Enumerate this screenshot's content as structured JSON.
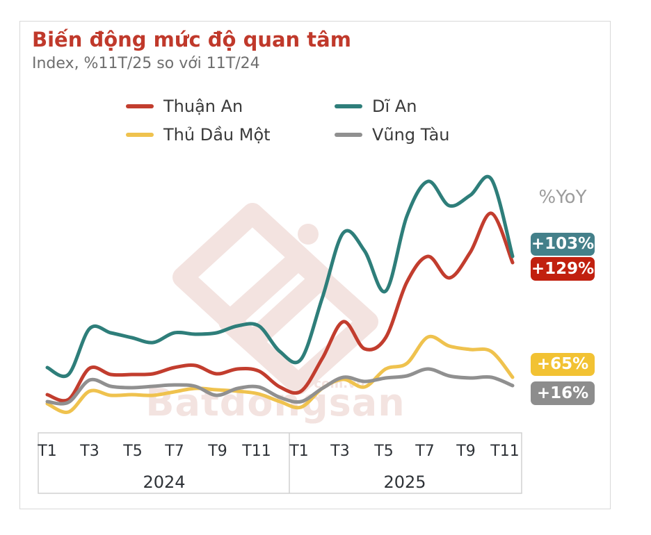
{
  "card": {
    "title": "Biến động mức độ quan tâm",
    "subtitle": "Index, %11T/25 so với 11T/24"
  },
  "legend": [
    {
      "label": "Thuận An",
      "color": "#c23d2e"
    },
    {
      "label": "Dĩ An",
      "color": "#2e7e7a"
    },
    {
      "label": "Thủ Dầu Một",
      "color": "#efc24e"
    },
    {
      "label": "Vũng Tàu",
      "color": "#909090"
    }
  ],
  "yoy": {
    "header": "%YoY",
    "badges": [
      {
        "label": "+103%",
        "series": "Dĩ An",
        "color": "#44808a"
      },
      {
        "label": "+129%",
        "series": "Thuận An",
        "color": "#c1200f"
      },
      {
        "label": "+65%",
        "series": "Thủ Dầu Một",
        "color": "#f2c233"
      },
      {
        "label": "+16%",
        "series": "Vũng Tàu",
        "color": "#8d8d8d"
      }
    ]
  },
  "axis": {
    "groups": [
      {
        "year": "2024",
        "ticks": [
          "T1",
          "T3",
          "T5",
          "T7",
          "T9",
          "T11"
        ]
      },
      {
        "year": "2025",
        "ticks": [
          "T1",
          "T3",
          "T5",
          "T7",
          "T9",
          "T11"
        ]
      }
    ]
  },
  "watermark": {
    "brand": "Batdongsan",
    "domain": "com.vn"
  },
  "chart_data": {
    "type": "line",
    "title": "Biến động mức độ quan tâm",
    "subtitle": "Index, %11T/25 so với 11T/24",
    "x": [
      "T1/24",
      "T2/24",
      "T3/24",
      "T4/24",
      "T5/24",
      "T6/24",
      "T7/24",
      "T8/24",
      "T9/24",
      "T10/24",
      "T11/24",
      "T12/24",
      "T1/25",
      "T2/25",
      "T3/25",
      "T4/25",
      "T5/25",
      "T6/25",
      "T7/25",
      "T8/25",
      "T9/25",
      "T10/25",
      "T11/25"
    ],
    "x_axis_note": "monthly index, T1 2024 through T11 2025; only odd months labeled",
    "ylim": [
      0,
      390
    ],
    "y_axis_shown": false,
    "grid": false,
    "legend_position": "top",
    "series": [
      {
        "name": "Thuận An",
        "color": "#c23d2e",
        "yoy": "+129%",
        "values": [
          63,
          56,
          101,
          92,
          92,
          93,
          102,
          105,
          93,
          100,
          97,
          74,
          68,
          115,
          168,
          129,
          145,
          225,
          262,
          231,
          268,
          324,
          253
        ]
      },
      {
        "name": "Dĩ An",
        "color": "#2e7e7a",
        "yoy": "+103%",
        "values": [
          102,
          92,
          158,
          152,
          145,
          138,
          152,
          150,
          152,
          162,
          162,
          125,
          114,
          202,
          296,
          270,
          212,
          320,
          370,
          335,
          350,
          373,
          262
        ]
      },
      {
        "name": "Thủ Dầu Một",
        "color": "#efc24e",
        "yoy": "+65%",
        "values": [
          50,
          38,
          68,
          62,
          63,
          62,
          67,
          72,
          70,
          68,
          64,
          53,
          45,
          72,
          85,
          74,
          100,
          108,
          146,
          133,
          128,
          125,
          88
        ]
      },
      {
        "name": "Vũng Tàu",
        "color": "#909090",
        "yoy": "+16%",
        "values": [
          53,
          52,
          84,
          75,
          73,
          75,
          77,
          75,
          62,
          72,
          74,
          59,
          53,
          72,
          88,
          82,
          87,
          90,
          100,
          90,
          87,
          88,
          76
        ]
      }
    ]
  }
}
